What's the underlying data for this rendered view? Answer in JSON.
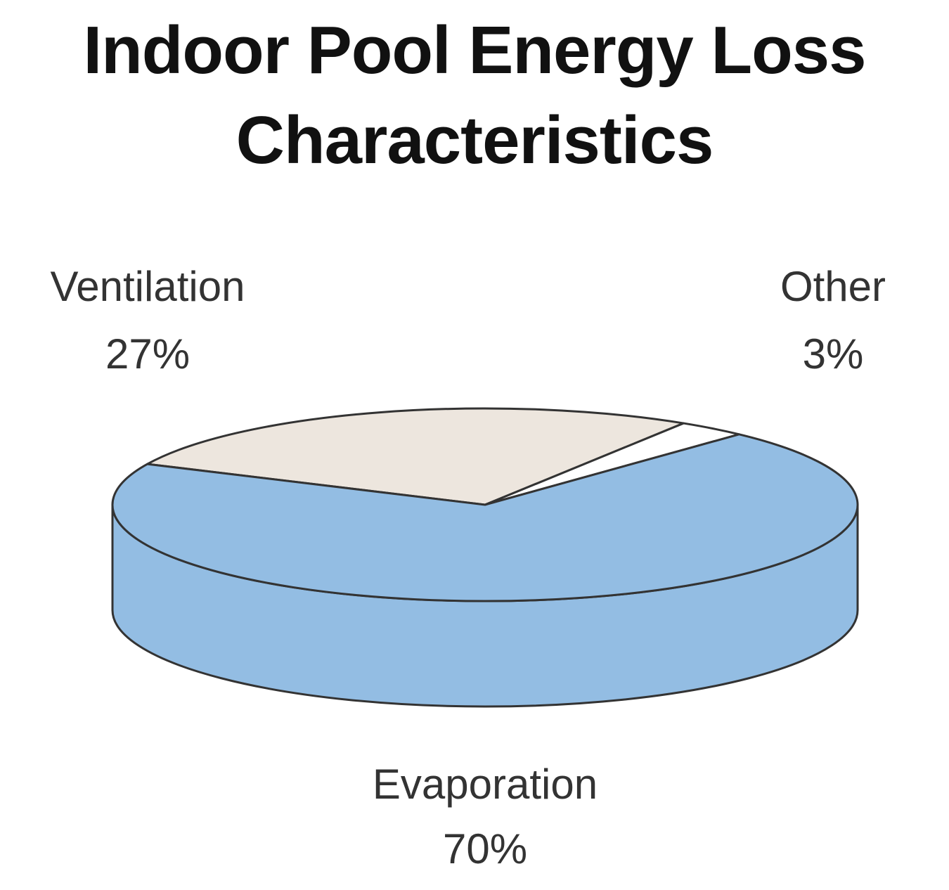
{
  "chart_data": {
    "type": "pie",
    "title": "Indoor Pool Energy Loss Characteristics",
    "categories": [
      "Ventilation",
      "Other",
      "Evaporation"
    ],
    "values": [
      27,
      3,
      70
    ],
    "value_labels": [
      "27%",
      "3%",
      "70%"
    ],
    "colors": [
      "#ede6de",
      "#ffffff",
      "#93bde3"
    ]
  }
}
